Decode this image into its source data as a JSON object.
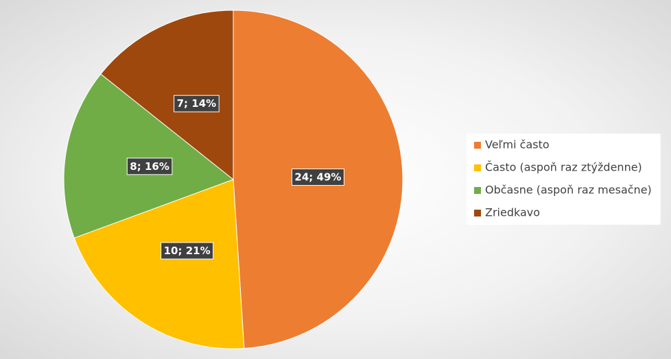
{
  "chart_data": {
    "type": "pie",
    "categories": [
      "Veľmi často",
      "Často (aspoň raz ztýždenne)",
      "Občasne (aspoň raz mesačne)",
      "Zriedkavo"
    ],
    "values": [
      24,
      10,
      8,
      7
    ],
    "value_labels": [
      "24; 49%",
      "10; 21%",
      "8; 16%",
      "7; 14%"
    ],
    "colors": [
      "#ed7d31",
      "#ffc000",
      "#70ad47",
      "#9e480e"
    ],
    "legend": "right"
  }
}
